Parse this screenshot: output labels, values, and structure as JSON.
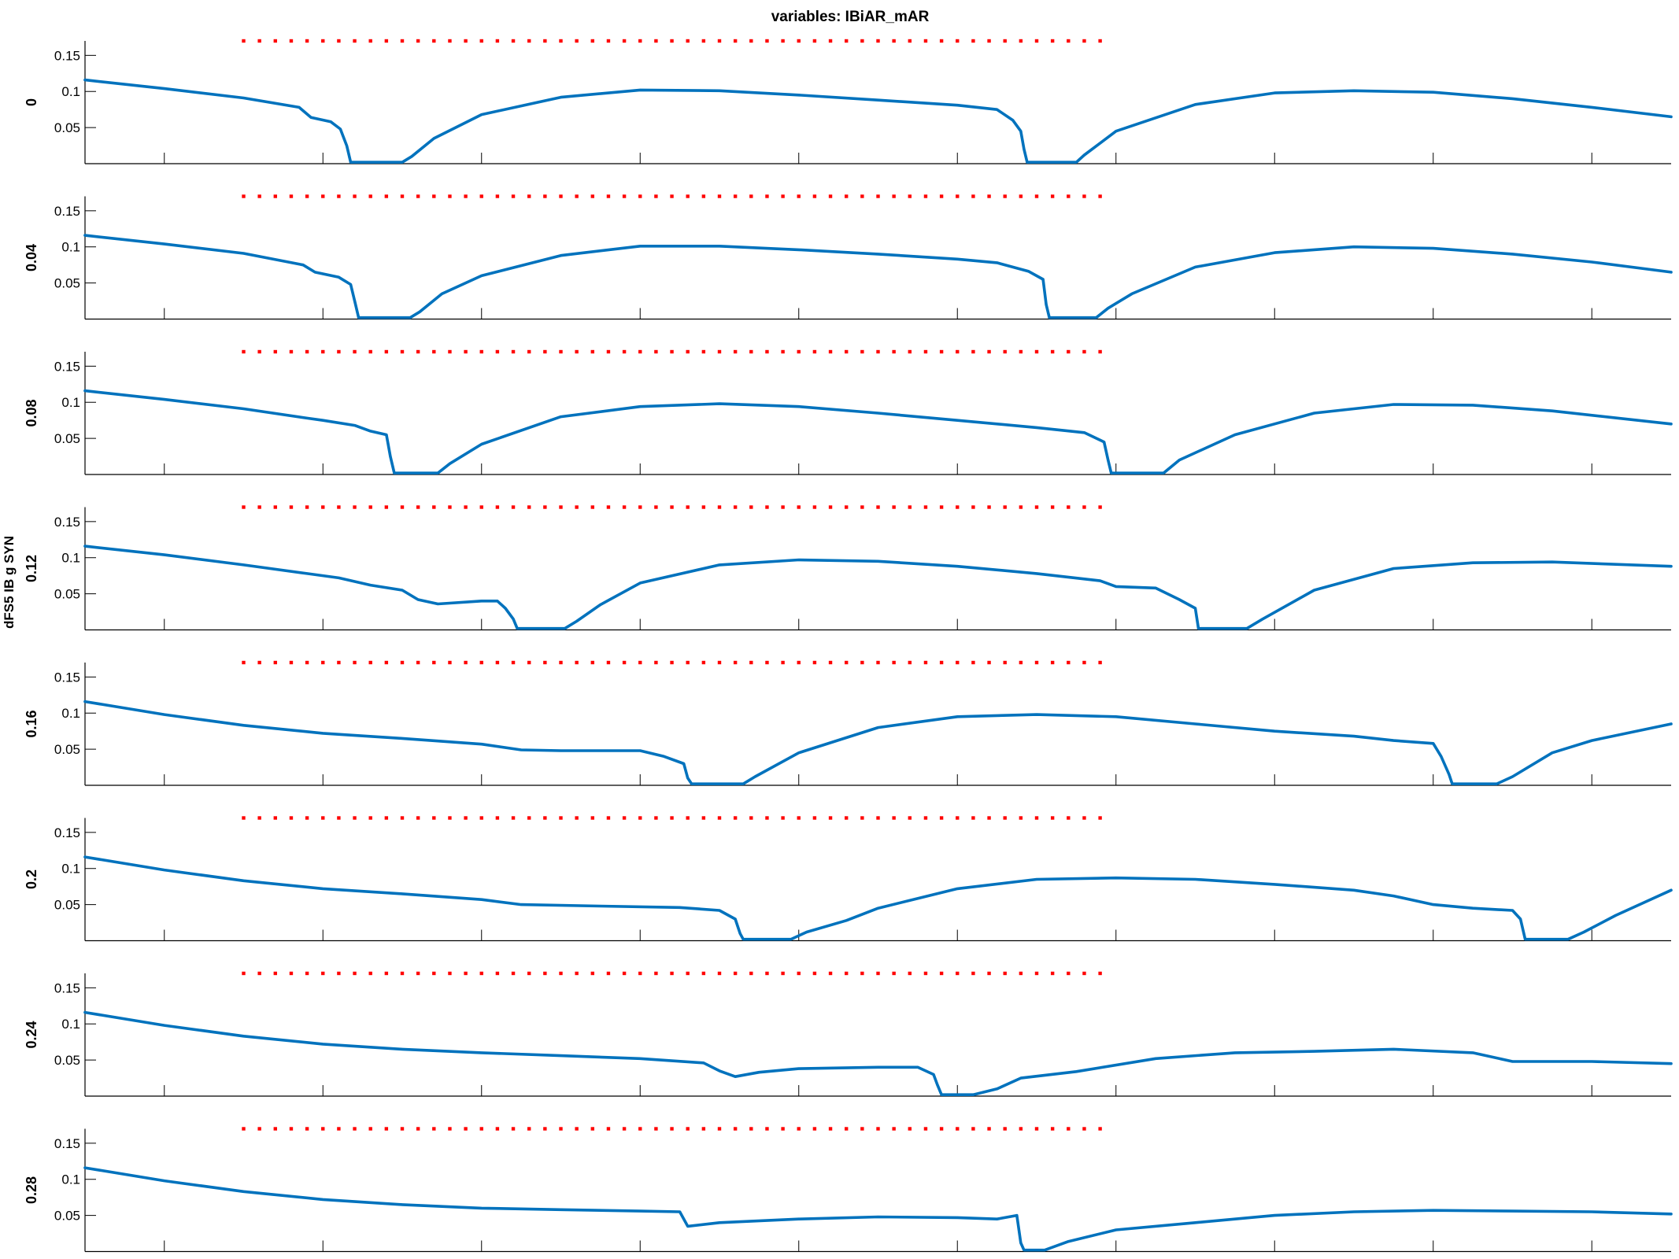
{
  "figure": {
    "title": "variables: IBiAR_mAR",
    "ylabel": "dFS5 IB g SYN"
  },
  "colors": {
    "line": "#0072BD",
    "stimulus_dots": "#ff0000",
    "axes": "#000000",
    "background": "#ffffff"
  },
  "chart_data": {
    "type": "line",
    "title": "variables: IBiAR_mAR",
    "ylabel": "dFS5 IB g SYN",
    "xlim": [
      300,
      2300
    ],
    "ylim": [
      0,
      0.17
    ],
    "xticks": [
      400,
      600,
      800,
      1000,
      1200,
      1400,
      1600,
      1800,
      2000,
      2200
    ],
    "yticks": [
      0.05,
      0.1,
      0.15
    ],
    "ytick_labels": [
      "0.05",
      "0.1",
      "0.15"
    ],
    "grid": false,
    "stimulus_markers": {
      "x_start": 500,
      "x_end": 1580,
      "spacing": 20,
      "y": 0.17
    },
    "panels": [
      {
        "label": "0",
        "points": [
          [
            300,
            0.116
          ],
          [
            400,
            0.104
          ],
          [
            500,
            0.091
          ],
          [
            570,
            0.078
          ],
          [
            585,
            0.064
          ],
          [
            610,
            0.058
          ],
          [
            622,
            0.048
          ],
          [
            630,
            0.025
          ],
          [
            635,
            0.002
          ],
          [
            700,
            0.002
          ],
          [
            712,
            0.01
          ],
          [
            740,
            0.035
          ],
          [
            800,
            0.068
          ],
          [
            900,
            0.092
          ],
          [
            1000,
            0.102
          ],
          [
            1100,
            0.101
          ],
          [
            1200,
            0.095
          ],
          [
            1300,
            0.088
          ],
          [
            1400,
            0.081
          ],
          [
            1450,
            0.075
          ],
          [
            1470,
            0.06
          ],
          [
            1480,
            0.045
          ],
          [
            1484,
            0.02
          ],
          [
            1488,
            0.002
          ],
          [
            1550,
            0.002
          ],
          [
            1560,
            0.012
          ],
          [
            1600,
            0.045
          ],
          [
            1700,
            0.082
          ],
          [
            1800,
            0.098
          ],
          [
            1900,
            0.101
          ],
          [
            2000,
            0.099
          ],
          [
            2100,
            0.09
          ],
          [
            2200,
            0.078
          ],
          [
            2300,
            0.065
          ]
        ]
      },
      {
        "label": "0.04",
        "points": [
          [
            300,
            0.116
          ],
          [
            400,
            0.104
          ],
          [
            500,
            0.091
          ],
          [
            575,
            0.075
          ],
          [
            590,
            0.065
          ],
          [
            620,
            0.058
          ],
          [
            635,
            0.048
          ],
          [
            640,
            0.025
          ],
          [
            645,
            0.002
          ],
          [
            710,
            0.002
          ],
          [
            722,
            0.01
          ],
          [
            750,
            0.035
          ],
          [
            800,
            0.06
          ],
          [
            900,
            0.088
          ],
          [
            1000,
            0.101
          ],
          [
            1100,
            0.101
          ],
          [
            1200,
            0.096
          ],
          [
            1300,
            0.09
          ],
          [
            1400,
            0.083
          ],
          [
            1450,
            0.078
          ],
          [
            1490,
            0.066
          ],
          [
            1508,
            0.055
          ],
          [
            1512,
            0.02
          ],
          [
            1516,
            0.002
          ],
          [
            1575,
            0.002
          ],
          [
            1590,
            0.015
          ],
          [
            1620,
            0.035
          ],
          [
            1700,
            0.072
          ],
          [
            1800,
            0.092
          ],
          [
            1900,
            0.1
          ],
          [
            2000,
            0.098
          ],
          [
            2100,
            0.09
          ],
          [
            2200,
            0.079
          ],
          [
            2300,
            0.065
          ]
        ]
      },
      {
        "label": "0.08",
        "points": [
          [
            300,
            0.116
          ],
          [
            400,
            0.104
          ],
          [
            500,
            0.091
          ],
          [
            580,
            0.078
          ],
          [
            600,
            0.075
          ],
          [
            640,
            0.068
          ],
          [
            660,
            0.06
          ],
          [
            680,
            0.055
          ],
          [
            685,
            0.025
          ],
          [
            690,
            0.002
          ],
          [
            745,
            0.002
          ],
          [
            760,
            0.015
          ],
          [
            800,
            0.042
          ],
          [
            900,
            0.08
          ],
          [
            1000,
            0.094
          ],
          [
            1100,
            0.098
          ],
          [
            1200,
            0.094
          ],
          [
            1300,
            0.085
          ],
          [
            1400,
            0.075
          ],
          [
            1500,
            0.065
          ],
          [
            1560,
            0.058
          ],
          [
            1585,
            0.045
          ],
          [
            1590,
            0.02
          ],
          [
            1594,
            0.002
          ],
          [
            1660,
            0.002
          ],
          [
            1680,
            0.02
          ],
          [
            1750,
            0.055
          ],
          [
            1850,
            0.085
          ],
          [
            1950,
            0.097
          ],
          [
            2050,
            0.096
          ],
          [
            2150,
            0.088
          ],
          [
            2300,
            0.07
          ]
        ]
      },
      {
        "label": "0.12",
        "points": [
          [
            300,
            0.116
          ],
          [
            400,
            0.104
          ],
          [
            500,
            0.09
          ],
          [
            580,
            0.078
          ],
          [
            620,
            0.072
          ],
          [
            660,
            0.062
          ],
          [
            700,
            0.055
          ],
          [
            720,
            0.042
          ],
          [
            745,
            0.036
          ],
          [
            800,
            0.04
          ],
          [
            820,
            0.04
          ],
          [
            830,
            0.03
          ],
          [
            840,
            0.015
          ],
          [
            845,
            0.002
          ],
          [
            905,
            0.002
          ],
          [
            920,
            0.012
          ],
          [
            950,
            0.035
          ],
          [
            1000,
            0.065
          ],
          [
            1100,
            0.09
          ],
          [
            1200,
            0.097
          ],
          [
            1300,
            0.095
          ],
          [
            1400,
            0.088
          ],
          [
            1500,
            0.078
          ],
          [
            1580,
            0.068
          ],
          [
            1600,
            0.06
          ],
          [
            1650,
            0.058
          ],
          [
            1680,
            0.042
          ],
          [
            1700,
            0.03
          ],
          [
            1704,
            0.002
          ],
          [
            1765,
            0.002
          ],
          [
            1785,
            0.015
          ],
          [
            1850,
            0.055
          ],
          [
            1950,
            0.085
          ],
          [
            2050,
            0.093
          ],
          [
            2150,
            0.094
          ],
          [
            2300,
            0.088
          ]
        ]
      },
      {
        "label": "0.16",
        "points": [
          [
            300,
            0.116
          ],
          [
            400,
            0.098
          ],
          [
            500,
            0.083
          ],
          [
            600,
            0.072
          ],
          [
            700,
            0.065
          ],
          [
            800,
            0.057
          ],
          [
            850,
            0.049
          ],
          [
            900,
            0.048
          ],
          [
            1000,
            0.048
          ],
          [
            1030,
            0.04
          ],
          [
            1055,
            0.03
          ],
          [
            1060,
            0.01
          ],
          [
            1065,
            0.002
          ],
          [
            1130,
            0.002
          ],
          [
            1145,
            0.012
          ],
          [
            1200,
            0.045
          ],
          [
            1300,
            0.08
          ],
          [
            1400,
            0.095
          ],
          [
            1500,
            0.098
          ],
          [
            1600,
            0.095
          ],
          [
            1700,
            0.085
          ],
          [
            1800,
            0.075
          ],
          [
            1900,
            0.068
          ],
          [
            1950,
            0.062
          ],
          [
            2000,
            0.058
          ],
          [
            2010,
            0.04
          ],
          [
            2020,
            0.015
          ],
          [
            2024,
            0.002
          ],
          [
            2080,
            0.002
          ],
          [
            2100,
            0.012
          ],
          [
            2150,
            0.045
          ],
          [
            2200,
            0.062
          ],
          [
            2300,
            0.085
          ]
        ]
      },
      {
        "label": "0.2",
        "points": [
          [
            300,
            0.116
          ],
          [
            400,
            0.098
          ],
          [
            500,
            0.083
          ],
          [
            600,
            0.072
          ],
          [
            700,
            0.065
          ],
          [
            800,
            0.057
          ],
          [
            850,
            0.05
          ],
          [
            950,
            0.048
          ],
          [
            1050,
            0.046
          ],
          [
            1100,
            0.042
          ],
          [
            1120,
            0.03
          ],
          [
            1126,
            0.01
          ],
          [
            1130,
            0.002
          ],
          [
            1190,
            0.002
          ],
          [
            1210,
            0.012
          ],
          [
            1260,
            0.028
          ],
          [
            1300,
            0.045
          ],
          [
            1400,
            0.072
          ],
          [
            1500,
            0.085
          ],
          [
            1600,
            0.087
          ],
          [
            1700,
            0.085
          ],
          [
            1800,
            0.078
          ],
          [
            1900,
            0.07
          ],
          [
            1950,
            0.062
          ],
          [
            2000,
            0.05
          ],
          [
            2050,
            0.045
          ],
          [
            2100,
            0.042
          ],
          [
            2110,
            0.03
          ],
          [
            2116,
            0.002
          ],
          [
            2170,
            0.002
          ],
          [
            2190,
            0.012
          ],
          [
            2230,
            0.035
          ],
          [
            2300,
            0.07
          ]
        ]
      },
      {
        "label": "0.24",
        "points": [
          [
            300,
            0.116
          ],
          [
            400,
            0.098
          ],
          [
            500,
            0.083
          ],
          [
            600,
            0.072
          ],
          [
            700,
            0.065
          ],
          [
            800,
            0.06
          ],
          [
            900,
            0.056
          ],
          [
            1000,
            0.052
          ],
          [
            1080,
            0.046
          ],
          [
            1100,
            0.035
          ],
          [
            1120,
            0.027
          ],
          [
            1150,
            0.033
          ],
          [
            1200,
            0.038
          ],
          [
            1300,
            0.04
          ],
          [
            1350,
            0.04
          ],
          [
            1370,
            0.03
          ],
          [
            1375,
            0.015
          ],
          [
            1380,
            0.002
          ],
          [
            1420,
            0.002
          ],
          [
            1450,
            0.01
          ],
          [
            1480,
            0.025
          ],
          [
            1550,
            0.034
          ],
          [
            1650,
            0.052
          ],
          [
            1750,
            0.06
          ],
          [
            1850,
            0.062
          ],
          [
            1950,
            0.065
          ],
          [
            2050,
            0.06
          ],
          [
            2100,
            0.048
          ],
          [
            2200,
            0.048
          ],
          [
            2300,
            0.045
          ]
        ]
      },
      {
        "label": "0.28",
        "points": [
          [
            300,
            0.116
          ],
          [
            400,
            0.098
          ],
          [
            500,
            0.083
          ],
          [
            600,
            0.072
          ],
          [
            700,
            0.065
          ],
          [
            800,
            0.06
          ],
          [
            900,
            0.058
          ],
          [
            1000,
            0.056
          ],
          [
            1050,
            0.055
          ],
          [
            1060,
            0.035
          ],
          [
            1100,
            0.04
          ],
          [
            1200,
            0.045
          ],
          [
            1300,
            0.048
          ],
          [
            1400,
            0.047
          ],
          [
            1450,
            0.045
          ],
          [
            1475,
            0.05
          ],
          [
            1480,
            0.012
          ],
          [
            1484,
            0.002
          ],
          [
            1510,
            0.002
          ],
          [
            1540,
            0.014
          ],
          [
            1600,
            0.03
          ],
          [
            1700,
            0.04
          ],
          [
            1800,
            0.05
          ],
          [
            1900,
            0.055
          ],
          [
            2000,
            0.057
          ],
          [
            2100,
            0.056
          ],
          [
            2200,
            0.055
          ],
          [
            2300,
            0.052
          ]
        ]
      }
    ]
  }
}
